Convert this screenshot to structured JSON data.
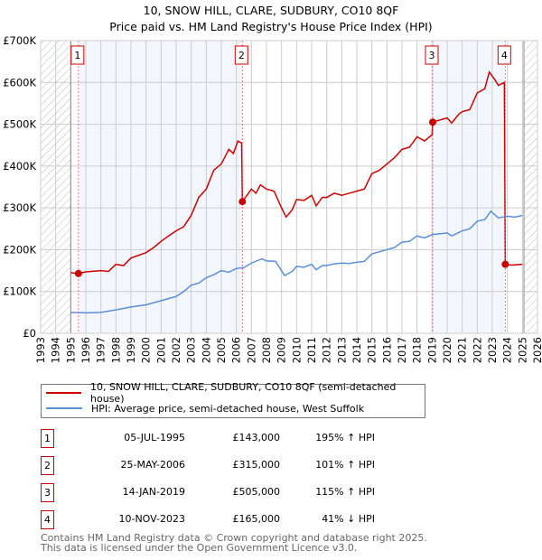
{
  "chart_data": {
    "type": "line",
    "title": "10, SNOW HILL, CLARE, SUDBURY, CO10 8QF",
    "subtitle": "Price paid vs. HM Land Registry's House Price Index (HPI)",
    "xlim": [
      1993,
      2026
    ],
    "ylim": [
      0,
      700000
    ],
    "x_ticks": [
      "1993",
      "1994",
      "1995",
      "1996",
      "1997",
      "1998",
      "1999",
      "2000",
      "2001",
      "2002",
      "2003",
      "2004",
      "2005",
      "2006",
      "2007",
      "2008",
      "2009",
      "2010",
      "2011",
      "2012",
      "2013",
      "2014",
      "2015",
      "2016",
      "2017",
      "2018",
      "2019",
      "2020",
      "2021",
      "2022",
      "2023",
      "2024",
      "2025",
      "2026"
    ],
    "y_ticks": [
      {
        "v": 0,
        "label": "£0"
      },
      {
        "v": 100000,
        "label": "£100K"
      },
      {
        "v": 200000,
        "label": "£200K"
      },
      {
        "v": 300000,
        "label": "£300K"
      },
      {
        "v": 400000,
        "label": "£400K"
      },
      {
        "v": 500000,
        "label": "£500K"
      },
      {
        "v": 600000,
        "label": "£600K"
      },
      {
        "v": 700000,
        "label": "£700K"
      }
    ],
    "grid": true,
    "series": [
      {
        "name": "10, SNOW HILL, CLARE, SUDBURY, CO10 8QF (semi-detached house)",
        "color": "#cc0000",
        "points": [
          [
            1995,
            145
          ],
          [
            1995.5,
            143
          ],
          [
            1996,
            147
          ],
          [
            1997,
            150
          ],
          [
            1997.5,
            148
          ],
          [
            1998,
            165
          ],
          [
            1998.5,
            162
          ],
          [
            1999,
            180
          ],
          [
            2000,
            193
          ],
          [
            2000.5,
            205
          ],
          [
            2001,
            220
          ],
          [
            2001.5,
            233
          ],
          [
            2002,
            245
          ],
          [
            2002.5,
            255
          ],
          [
            2003,
            282
          ],
          [
            2003.5,
            325
          ],
          [
            2004,
            345
          ],
          [
            2004.5,
            390
          ],
          [
            2005,
            405
          ],
          [
            2005.5,
            440
          ],
          [
            2005.8,
            430
          ],
          [
            2006.1,
            460
          ],
          [
            2006.35,
            455
          ],
          [
            2006.4,
            315
          ],
          [
            2006.5,
            320
          ],
          [
            2007,
            345
          ],
          [
            2007.3,
            335
          ],
          [
            2007.6,
            355
          ],
          [
            2008,
            345
          ],
          [
            2008.5,
            340
          ],
          [
            2009,
            300
          ],
          [
            2009.3,
            278
          ],
          [
            2009.7,
            295
          ],
          [
            2010,
            320
          ],
          [
            2010.5,
            318
          ],
          [
            2011,
            330
          ],
          [
            2011.3,
            305
          ],
          [
            2011.7,
            325
          ],
          [
            2012,
            325
          ],
          [
            2012.5,
            335
          ],
          [
            2013,
            330
          ],
          [
            2013.5,
            335
          ],
          [
            2014,
            340
          ],
          [
            2014.5,
            345
          ],
          [
            2015,
            382
          ],
          [
            2015.5,
            390
          ],
          [
            2016,
            405
          ],
          [
            2016.5,
            420
          ],
          [
            2017,
            440
          ],
          [
            2017.5,
            445
          ],
          [
            2018,
            470
          ],
          [
            2018.5,
            460
          ],
          [
            2019,
            475
          ],
          [
            2019.04,
            505
          ],
          [
            2019.5,
            510
          ],
          [
            2020,
            515
          ],
          [
            2020.3,
            503
          ],
          [
            2020.8,
            525
          ],
          [
            2021,
            530
          ],
          [
            2021.5,
            535
          ],
          [
            2022,
            575
          ],
          [
            2022.5,
            585
          ],
          [
            2022.8,
            625
          ],
          [
            2023.2,
            605
          ],
          [
            2023.4,
            593
          ],
          [
            2023.8,
            600
          ],
          [
            2023.86,
            165
          ],
          [
            2024.3,
            163
          ],
          [
            2025,
            165
          ]
        ]
      },
      {
        "name": "HPI: Average price, semi-detached house, West Suffolk",
        "color": "#5b8fd6",
        "points": [
          [
            1995,
            50
          ],
          [
            1996,
            49
          ],
          [
            1997,
            50
          ],
          [
            1998,
            56
          ],
          [
            1999,
            63
          ],
          [
            2000,
            68
          ],
          [
            2001,
            78
          ],
          [
            2002,
            88
          ],
          [
            2002.5,
            100
          ],
          [
            2003,
            115
          ],
          [
            2003.5,
            120
          ],
          [
            2004,
            133
          ],
          [
            2004.5,
            140
          ],
          [
            2005,
            150
          ],
          [
            2005.5,
            146
          ],
          [
            2006,
            155
          ],
          [
            2006.5,
            157
          ],
          [
            2007,
            168
          ],
          [
            2007.7,
            178
          ],
          [
            2008,
            173
          ],
          [
            2008.6,
            172
          ],
          [
            2009,
            150
          ],
          [
            2009.2,
            138
          ],
          [
            2009.7,
            148
          ],
          [
            2010,
            160
          ],
          [
            2010.5,
            158
          ],
          [
            2011,
            165
          ],
          [
            2011.3,
            152
          ],
          [
            2011.7,
            162
          ],
          [
            2012,
            162
          ],
          [
            2012.5,
            166
          ],
          [
            2013,
            168
          ],
          [
            2013.5,
            167
          ],
          [
            2014,
            170
          ],
          [
            2014.5,
            172
          ],
          [
            2015,
            190
          ],
          [
            2016,
            200
          ],
          [
            2016.5,
            205
          ],
          [
            2017,
            218
          ],
          [
            2017.5,
            220
          ],
          [
            2018,
            233
          ],
          [
            2018.5,
            228
          ],
          [
            2019,
            236
          ],
          [
            2020,
            240
          ],
          [
            2020.3,
            233
          ],
          [
            2021,
            245
          ],
          [
            2021.5,
            250
          ],
          [
            2022,
            268
          ],
          [
            2022.5,
            272
          ],
          [
            2022.9,
            292
          ],
          [
            2023.4,
            276
          ],
          [
            2024,
            280
          ],
          [
            2024.5,
            278
          ],
          [
            2025,
            282
          ]
        ]
      }
    ],
    "units_note": "points in £K",
    "sales": [
      {
        "n": "1",
        "x": 1995.51,
        "price": 143000,
        "date": "05-JUL-1995",
        "price_label": "£143,000",
        "hpi": "195% ↑ HPI"
      },
      {
        "n": "2",
        "x": 2006.4,
        "price": 315000,
        "date": "25-MAY-2006",
        "price_label": "£315,000",
        "hpi": "101% ↑ HPI"
      },
      {
        "n": "3",
        "x": 2019.04,
        "price": 505000,
        "date": "14-JAN-2019",
        "price_label": "£505,000",
        "hpi": "115% ↑ HPI"
      },
      {
        "n": "4",
        "x": 2023.86,
        "price": 165000,
        "date": "10-NOV-2023",
        "price_label": "£165,000",
        "hpi": "41% ↓ HPI"
      }
    ]
  },
  "footer": [
    "Contains HM Land Registry data © Crown copyright and database right 2025.",
    "This data is licensed under the Open Government Licence v3.0."
  ]
}
